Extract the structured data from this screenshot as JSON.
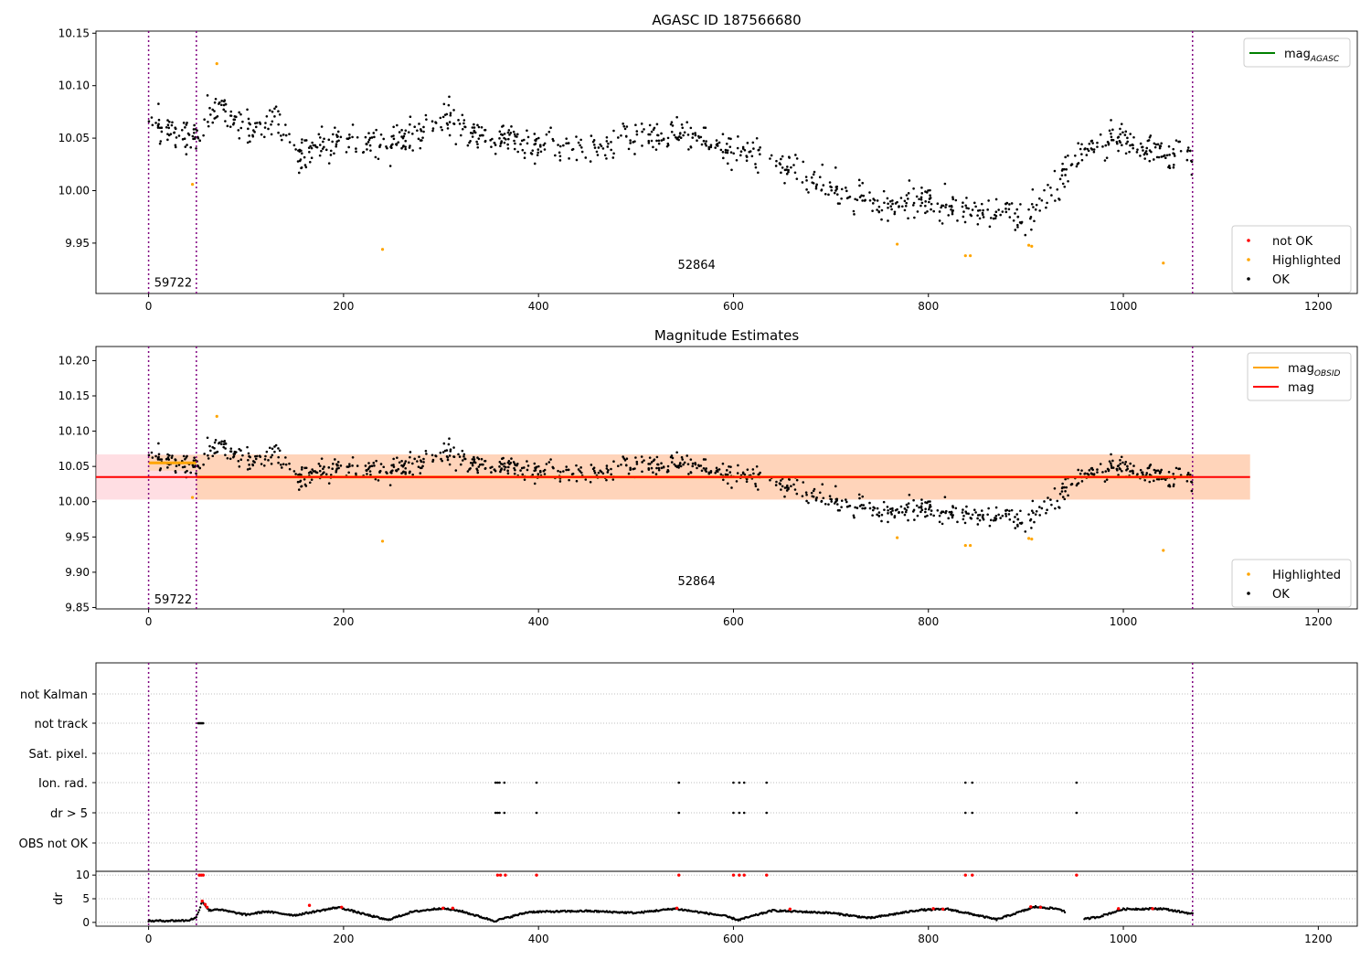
{
  "chart_data": [
    {
      "type": "scatter",
      "title": "AGASC ID 187566680",
      "xlabel": "",
      "ylabel": "",
      "xlim": [
        -54,
        1240
      ],
      "ylim": [
        9.902,
        10.152
      ],
      "xticks": [
        0,
        200,
        400,
        600,
        800,
        1000,
        1200
      ],
      "yticks": [
        9.95,
        10.0,
        10.05,
        10.1,
        10.15
      ],
      "ytick_labels": [
        "9.95",
        "10.00",
        "10.05",
        "10.10",
        "10.15"
      ],
      "grid": false,
      "vlines": [
        0,
        49,
        1071
      ],
      "annotations": [
        {
          "text": "59722",
          "x": 3,
          "y": 9.913
        },
        {
          "text": "52864",
          "x": 540,
          "y": 9.93
        }
      ],
      "legend_lines": {
        "position": "top-right",
        "entries": [
          {
            "label": "mag",
            "sub": "AGASC",
            "color": "#008000"
          }
        ]
      },
      "legend_points": {
        "position": "bottom-right",
        "entries": [
          {
            "label": "not OK",
            "color": "#ff0000"
          },
          {
            "label": "Highlighted",
            "color": "#ffa500"
          },
          {
            "label": "OK",
            "color": "#000000"
          }
        ]
      },
      "series": [
        {
          "name": "Highlighted",
          "color": "#ffa500",
          "points": [
            [
              45,
              10.006
            ],
            [
              70,
              10.121
            ],
            [
              240,
              9.944
            ],
            [
              768,
              9.949
            ],
            [
              838,
              9.938
            ],
            [
              843,
              9.938
            ],
            [
              903,
              9.948
            ],
            [
              906,
              9.947
            ],
            [
              1041,
              9.931
            ]
          ]
        },
        {
          "name": "OK",
          "color": "#000000",
          "trend": [
            [
              0,
              10.075
            ],
            [
              20,
              10.055
            ],
            [
              49,
              10.05
            ],
            [
              70,
              10.085
            ],
            [
              100,
              10.06
            ],
            [
              130,
              10.07
            ],
            [
              150,
              10.03
            ],
            [
              200,
              10.05
            ],
            [
              240,
              10.04
            ],
            [
              300,
              10.07
            ],
            [
              350,
              10.05
            ],
            [
              400,
              10.045
            ],
            [
              450,
              10.04
            ],
            [
              500,
              10.05
            ],
            [
              550,
              10.055
            ],
            [
              600,
              10.04
            ],
            [
              650,
              10.025
            ],
            [
              700,
              10.005
            ],
            [
              750,
              9.985
            ],
            [
              800,
              9.99
            ],
            [
              850,
              9.98
            ],
            [
              900,
              9.975
            ],
            [
              930,
              10.0
            ],
            [
              950,
              10.035
            ],
            [
              1000,
              10.05
            ],
            [
              1040,
              10.035
            ],
            [
              1071,
              10.035
            ]
          ],
          "count": 1000,
          "scatter": 0.022
        }
      ]
    },
    {
      "type": "scatter",
      "title": "Magnitude Estimates",
      "xlabel": "",
      "ylabel": "",
      "xlim": [
        -54,
        1240
      ],
      "ylim": [
        9.848,
        10.22
      ],
      "xticks": [
        0,
        200,
        400,
        600,
        800,
        1000,
        1200
      ],
      "yticks": [
        9.85,
        9.9,
        9.95,
        10.0,
        10.05,
        10.1,
        10.15,
        10.2
      ],
      "ytick_labels": [
        "9.85",
        "9.90",
        "9.95",
        "10.00",
        "10.05",
        "10.10",
        "10.15",
        "10.20"
      ],
      "grid": false,
      "vlines": [
        0,
        49,
        1071
      ],
      "annotations": [
        {
          "text": "59722",
          "x": 3,
          "y": 9.862
        },
        {
          "text": "52864",
          "x": 540,
          "y": 9.888
        }
      ],
      "mag": 10.035,
      "mag_band": [
        10.003,
        10.067
      ],
      "mag_obsid": [
        {
          "x": [
            0,
            49
          ],
          "y": 10.055
        },
        {
          "x": [
            49,
            1071
          ],
          "y": 10.035
        }
      ],
      "obsid_band": [
        {
          "x": [
            0,
            49
          ],
          "y": [
            10.044,
            10.066
          ]
        },
        {
          "x": [
            49,
            1130
          ],
          "y": [
            10.003,
            10.067
          ]
        }
      ],
      "legend_lines": {
        "position": "top-right",
        "entries": [
          {
            "label": "mag",
            "sub": "OBSID",
            "color": "#ffa500"
          },
          {
            "label": "mag",
            "sub": "",
            "color": "#ff0000"
          }
        ]
      },
      "legend_points": {
        "position": "bottom-right",
        "entries": [
          {
            "label": "Highlighted",
            "color": "#ffa500"
          },
          {
            "label": "OK",
            "color": "#000000"
          }
        ]
      }
    },
    {
      "type": "scatter",
      "title": "",
      "xlim": [
        -54,
        1240
      ],
      "xticks": [
        0,
        200,
        400,
        600,
        800,
        1000,
        1200
      ],
      "vlines": [
        0,
        49,
        1071
      ],
      "flag_rows": [
        "not Kalman",
        "not track",
        "Sat. pixel.",
        "Ion. rad.",
        "dr > 5",
        "OBS not OK"
      ],
      "flags": {
        "not track": [
          51,
          52,
          53,
          54,
          55,
          56
        ],
        "Ion. rad.": [
          356,
          358,
          360,
          365,
          398,
          544,
          600,
          606,
          611,
          634,
          838,
          845,
          952
        ],
        "dr > 5": [
          356,
          358,
          360,
          365,
          398,
          544,
          600,
          606,
          611,
          634,
          838,
          845,
          952
        ]
      },
      "dr": {
        "ylabel": "dr",
        "ylim": [
          -0.8,
          10.8
        ],
        "yticks": [
          0,
          5,
          10
        ],
        "trend": [
          [
            0,
            0.3
          ],
          [
            40,
            0.4
          ],
          [
            49,
            1.0
          ],
          [
            55,
            4.5
          ],
          [
            62,
            2.5
          ],
          [
            70,
            2.8
          ],
          [
            100,
            1.6
          ],
          [
            120,
            2.3
          ],
          [
            150,
            1.5
          ],
          [
            195,
            3.2
          ],
          [
            220,
            1.8
          ],
          [
            245,
            0.5
          ],
          [
            270,
            2.2
          ],
          [
            300,
            3.0
          ],
          [
            320,
            2.4
          ],
          [
            355,
            0.3
          ],
          [
            390,
            2.2
          ],
          [
            450,
            2.4
          ],
          [
            500,
            2.0
          ],
          [
            540,
            2.9
          ],
          [
            590,
            1.4
          ],
          [
            605,
            0.5
          ],
          [
            640,
            2.5
          ],
          [
            700,
            2.0
          ],
          [
            740,
            0.9
          ],
          [
            790,
            2.6
          ],
          [
            820,
            2.8
          ],
          [
            850,
            1.5
          ],
          [
            870,
            0.6
          ],
          [
            910,
            3.3
          ],
          [
            935,
            2.8
          ],
          [
            955,
            0.5
          ],
          [
            975,
            1.2
          ],
          [
            1000,
            2.8
          ],
          [
            1040,
            2.9
          ],
          [
            1071,
            1.8
          ]
        ],
        "red_points": [
          [
            52,
            10
          ],
          [
            54,
            10
          ],
          [
            56,
            10
          ],
          [
            358,
            10
          ],
          [
            361,
            10
          ],
          [
            366,
            10
          ],
          [
            398,
            10
          ],
          [
            544,
            10
          ],
          [
            600,
            10
          ],
          [
            606,
            10
          ],
          [
            611,
            10
          ],
          [
            634,
            10
          ],
          [
            838,
            10
          ],
          [
            845,
            10
          ],
          [
            952,
            10
          ],
          [
            55,
            4.5
          ],
          [
            58,
            3.8
          ],
          [
            60,
            3.2
          ],
          [
            165,
            3.6
          ],
          [
            198,
            3.2
          ],
          [
            302,
            3.0
          ],
          [
            312,
            3.0
          ],
          [
            542,
            3.0
          ],
          [
            658,
            2.8
          ],
          [
            805,
            2.9
          ],
          [
            815,
            2.8
          ],
          [
            905,
            3.3
          ],
          [
            915,
            3.2
          ],
          [
            995,
            2.9
          ],
          [
            1030,
            2.9
          ]
        ]
      }
    }
  ]
}
